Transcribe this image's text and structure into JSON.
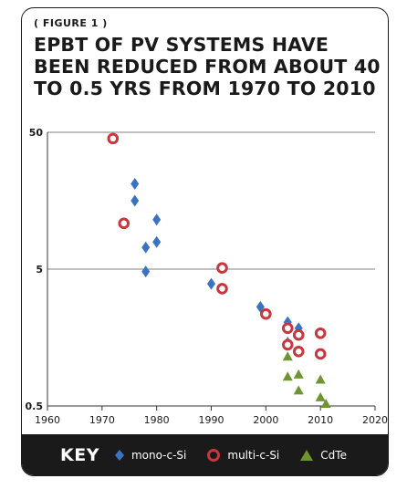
{
  "figure_label": "( FIGURE 1 )",
  "title": "EPBT OF PV SYSTEMS HAVE BEEN REDUCED FROM ABOUT 40 TO 0.5 YRS FROM 1970 TO 2010",
  "key": {
    "label": "KEY",
    "items": [
      {
        "name": "mono-c-Si",
        "marker": "diamond",
        "color": "#3b73c3"
      },
      {
        "name": "multi-c-Si",
        "marker": "ring",
        "color": "#c8363e"
      },
      {
        "name": "CdTe",
        "marker": "triangle",
        "color": "#6f9432"
      }
    ]
  },
  "chart_data": {
    "type": "scatter",
    "x_scale": "linear",
    "y_scale": "log",
    "xlim": [
      1960,
      2020
    ],
    "ylim": [
      0.5,
      50
    ],
    "x_ticks": [
      "1960",
      "1970",
      "1980",
      "1990",
      "2000",
      "2010",
      "2020"
    ],
    "y_ticks": [
      "0.5",
      "5",
      "50"
    ],
    "y_tick_values": [
      0.5,
      5,
      50
    ],
    "grid": "horizontal at y ticks",
    "xlabel": "",
    "ylabel": "",
    "series": [
      {
        "name": "mono-c-Si",
        "marker": "diamond",
        "color": "#3b73c3",
        "points": [
          [
            1976,
            21
          ],
          [
            1976,
            15.8
          ],
          [
            1980,
            11.5
          ],
          [
            1978,
            7.2
          ],
          [
            1980,
            7.9
          ],
          [
            1978,
            4.8
          ],
          [
            1990,
            3.9
          ],
          [
            1999,
            2.65
          ],
          [
            2004,
            2.05
          ],
          [
            2006,
            1.85
          ],
          [
            2004,
            1.45
          ],
          [
            2006,
            1.25
          ]
        ]
      },
      {
        "name": "multi-c-Si",
        "marker": "ring",
        "color": "#c8363e",
        "points": [
          [
            1972,
            45
          ],
          [
            1974,
            10.8
          ],
          [
            1992,
            5.1
          ],
          [
            1992,
            3.6
          ],
          [
            2000,
            2.35
          ],
          [
            2004,
            1.85
          ],
          [
            2006,
            1.65
          ],
          [
            2010,
            1.7
          ],
          [
            2004,
            1.4
          ],
          [
            2006,
            1.25
          ],
          [
            2010,
            1.2
          ]
        ]
      },
      {
        "name": "CdTe",
        "marker": "triangle",
        "color": "#6f9432",
        "points": [
          [
            2004,
            1.15
          ],
          [
            2004,
            0.82
          ],
          [
            2006,
            0.85
          ],
          [
            2010,
            0.78
          ],
          [
            2006,
            0.65
          ],
          [
            2010,
            0.58
          ],
          [
            2011,
            0.52
          ]
        ]
      }
    ]
  }
}
